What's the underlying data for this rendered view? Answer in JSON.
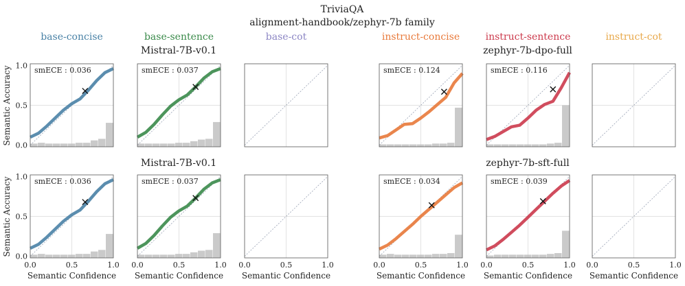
{
  "title": "TriviaQA",
  "subtitle": "alignment-handbook/zephyr-7b family",
  "columns": [
    {
      "label": "base-concise",
      "color": "#4a82a6"
    },
    {
      "label": "base-sentence",
      "color": "#3a8a4a"
    },
    {
      "label": "base-cot",
      "color": "#8c86c4"
    },
    {
      "label": "instruct-concise",
      "color": "#e8793a"
    },
    {
      "label": "instruct-sentence",
      "color": "#cc3a4c"
    },
    {
      "label": "instruct-cot",
      "color": "#e8a84a"
    }
  ],
  "row_titles": {
    "row1_left": "Mistral-7B-v0.1",
    "row1_right": "zephyr-7b-dpo-full",
    "row2_left": "Mistral-7B-v0.1",
    "row2_right": "zephyr-7b-sft-full"
  },
  "xlabel": "Semantic Confidence",
  "ylabel": "Semantic Accuracy",
  "xticks": [
    "0.0",
    "0.5",
    "1.0"
  ],
  "yticks": [
    "0.0",
    "0.5",
    "1.0"
  ],
  "chart_data": [
    {
      "type": "line",
      "panel": "row1-base-concise",
      "smECE_label": "smECE : 0.036",
      "x": [
        0,
        0.1,
        0.2,
        0.3,
        0.4,
        0.5,
        0.6,
        0.7,
        0.8,
        0.9,
        1.0
      ],
      "y": [
        0.1,
        0.15,
        0.24,
        0.34,
        0.44,
        0.52,
        0.58,
        0.69,
        0.81,
        0.91,
        0.96
      ],
      "marker": [
        0.66,
        0.68
      ],
      "hist": [
        0.02,
        0.03,
        0.02,
        0.02,
        0.02,
        0.02,
        0.03,
        0.03,
        0.06,
        0.08,
        0.28
      ]
    },
    {
      "type": "line",
      "panel": "row1-base-sentence",
      "smECE_label": "smECE : 0.037",
      "x": [
        0,
        0.1,
        0.2,
        0.3,
        0.4,
        0.5,
        0.6,
        0.7,
        0.8,
        0.9,
        1.0
      ],
      "y": [
        0.1,
        0.16,
        0.26,
        0.38,
        0.49,
        0.57,
        0.63,
        0.73,
        0.84,
        0.92,
        0.96
      ],
      "marker": [
        0.7,
        0.73
      ],
      "hist": [
        0.02,
        0.02,
        0.02,
        0.02,
        0.02,
        0.03,
        0.03,
        0.05,
        0.07,
        0.08,
        0.29
      ]
    },
    {
      "type": "line",
      "panel": "row1-base-cot",
      "smECE_label": "",
      "x": [],
      "y": [],
      "marker": null,
      "hist": []
    },
    {
      "type": "line",
      "panel": "row1-instruct-concise",
      "smECE_label": "smECE : 0.124",
      "x": [
        0,
        0.1,
        0.2,
        0.3,
        0.4,
        0.5,
        0.6,
        0.7,
        0.8,
        0.9,
        1.0
      ],
      "y": [
        0.09,
        0.12,
        0.19,
        0.26,
        0.27,
        0.34,
        0.42,
        0.51,
        0.6,
        0.78,
        0.9
      ],
      "marker": [
        0.78,
        0.67
      ],
      "hist": [
        0.01,
        0.01,
        0.01,
        0.01,
        0.01,
        0.01,
        0.01,
        0.02,
        0.02,
        0.03,
        0.47
      ]
    },
    {
      "type": "line",
      "panel": "row1-instruct-sentence",
      "smECE_label": "smECE : 0.116",
      "x": [
        0,
        0.1,
        0.2,
        0.3,
        0.4,
        0.5,
        0.6,
        0.7,
        0.8,
        0.9,
        1.0
      ],
      "y": [
        0.07,
        0.11,
        0.17,
        0.23,
        0.25,
        0.34,
        0.44,
        0.51,
        0.55,
        0.72,
        0.91
      ],
      "marker": [
        0.8,
        0.7
      ],
      "hist": [
        0.01,
        0.01,
        0.01,
        0.01,
        0.01,
        0.01,
        0.01,
        0.01,
        0.02,
        0.03,
        0.5
      ]
    },
    {
      "type": "line",
      "panel": "row1-instruct-cot",
      "smECE_label": "",
      "x": [],
      "y": [],
      "marker": null,
      "hist": []
    },
    {
      "type": "line",
      "panel": "row2-base-concise",
      "smECE_label": "smECE : 0.036",
      "x": [
        0,
        0.1,
        0.2,
        0.3,
        0.4,
        0.5,
        0.6,
        0.7,
        0.8,
        0.9,
        1.0
      ],
      "y": [
        0.1,
        0.15,
        0.24,
        0.34,
        0.44,
        0.52,
        0.58,
        0.69,
        0.81,
        0.91,
        0.96
      ],
      "marker": [
        0.66,
        0.68
      ],
      "hist": [
        0.02,
        0.03,
        0.02,
        0.02,
        0.02,
        0.02,
        0.03,
        0.03,
        0.06,
        0.08,
        0.28
      ]
    },
    {
      "type": "line",
      "panel": "row2-base-sentence",
      "smECE_label": "smECE : 0.037",
      "x": [
        0,
        0.1,
        0.2,
        0.3,
        0.4,
        0.5,
        0.6,
        0.7,
        0.8,
        0.9,
        1.0
      ],
      "y": [
        0.1,
        0.16,
        0.26,
        0.38,
        0.49,
        0.57,
        0.63,
        0.73,
        0.84,
        0.92,
        0.96
      ],
      "marker": [
        0.7,
        0.73
      ],
      "hist": [
        0.02,
        0.02,
        0.02,
        0.02,
        0.02,
        0.03,
        0.03,
        0.05,
        0.07,
        0.08,
        0.29
      ]
    },
    {
      "type": "line",
      "panel": "row2-base-cot",
      "smECE_label": "",
      "x": [],
      "y": [],
      "marker": null,
      "hist": []
    },
    {
      "type": "line",
      "panel": "row2-instruct-concise",
      "smECE_label": "smECE : 0.034",
      "x": [
        0,
        0.1,
        0.2,
        0.3,
        0.4,
        0.5,
        0.6,
        0.7,
        0.8,
        0.9,
        1.0
      ],
      "y": [
        0.09,
        0.14,
        0.22,
        0.31,
        0.4,
        0.5,
        0.59,
        0.68,
        0.77,
        0.86,
        0.92
      ],
      "marker": [
        0.63,
        0.64
      ],
      "hist": [
        0.02,
        0.03,
        0.02,
        0.02,
        0.02,
        0.02,
        0.02,
        0.03,
        0.03,
        0.04,
        0.27
      ]
    },
    {
      "type": "line",
      "panel": "row2-instruct-sentence",
      "smECE_label": "smECE : 0.039",
      "x": [
        0,
        0.1,
        0.2,
        0.3,
        0.4,
        0.5,
        0.6,
        0.7,
        0.8,
        0.9,
        1.0
      ],
      "y": [
        0.08,
        0.13,
        0.21,
        0.3,
        0.39,
        0.49,
        0.59,
        0.69,
        0.79,
        0.88,
        0.95
      ],
      "marker": [
        0.68,
        0.69
      ],
      "hist": [
        0.01,
        0.02,
        0.02,
        0.02,
        0.02,
        0.02,
        0.02,
        0.02,
        0.03,
        0.04,
        0.32
      ]
    },
    {
      "type": "line",
      "panel": "row2-instruct-cot",
      "smECE_label": "",
      "x": [],
      "y": [],
      "marker": null,
      "hist": []
    }
  ]
}
